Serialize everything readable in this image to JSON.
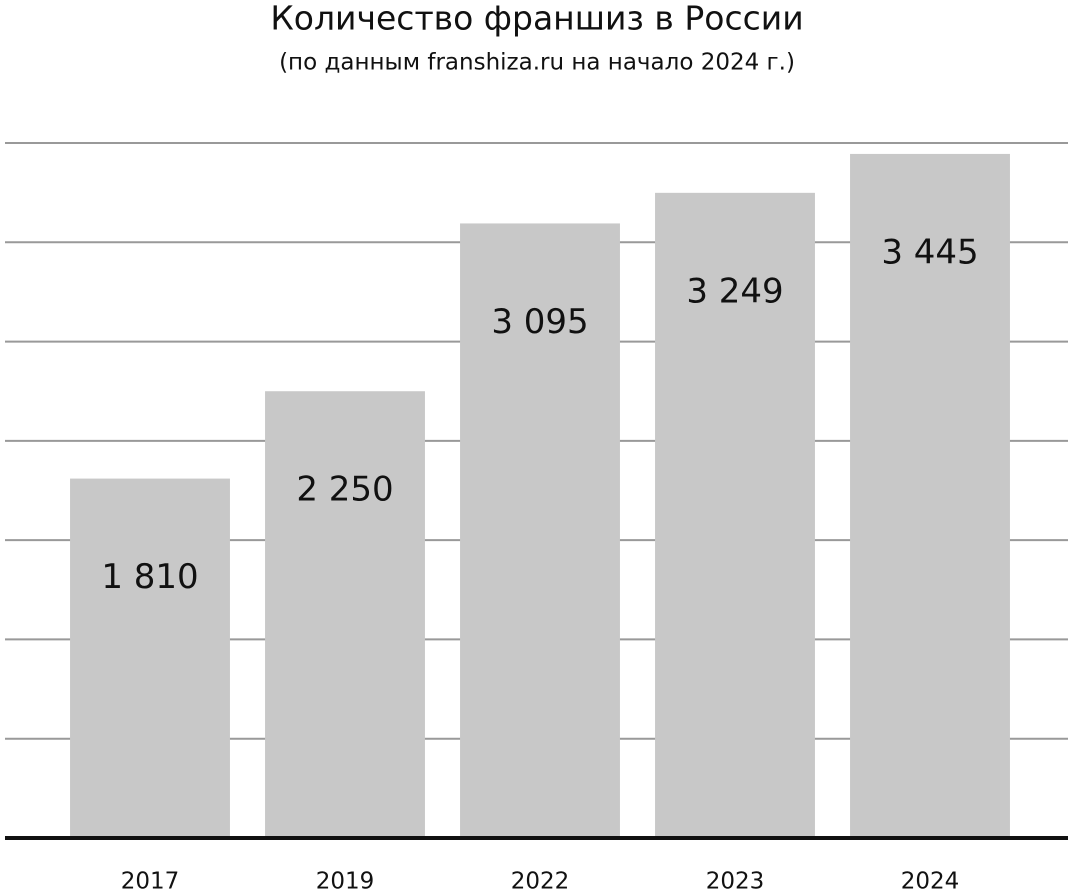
{
  "chart_data": {
    "type": "bar",
    "title": "Количество франшиз в России",
    "subtitle": "(по данным franshiza.ru на начало 2024 г.)",
    "categories": [
      "2017",
      "2019",
      "2022",
      "2023",
      "2024"
    ],
    "values": [
      1810,
      2250,
      3095,
      3249,
      3445
    ],
    "value_labels": [
      "1 810",
      "2 250",
      "3 095",
      "3 249",
      "3 445"
    ],
    "color": "#c8c8c8",
    "ylim": [
      0,
      3500
    ],
    "yticks": [
      0,
      500,
      1000,
      1500,
      2000,
      2500,
      3000,
      3500
    ],
    "grid": true
  }
}
